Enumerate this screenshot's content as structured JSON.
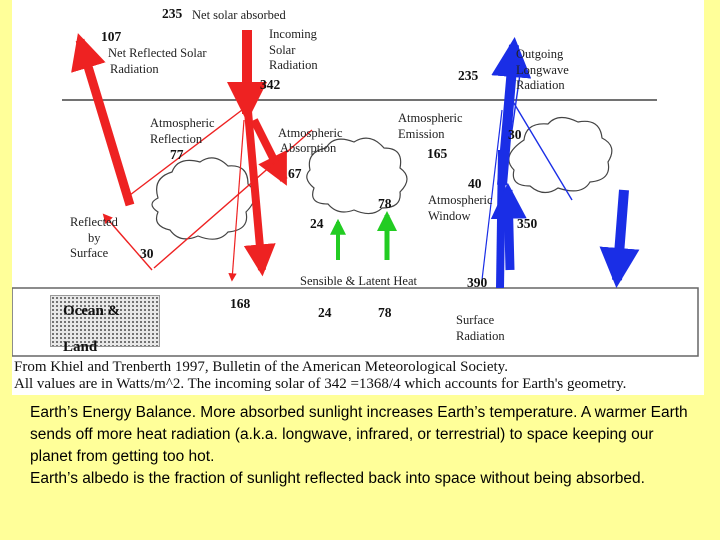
{
  "diagram": {
    "labels": {
      "net_solar_value": "235",
      "net_solar_text": "Net solar absorbed",
      "reflected_value": "107",
      "reflected_l1": "Net Reflected Solar",
      "reflected_l2": "Radiation",
      "incoming_l1": "Incoming",
      "incoming_l2": "Solar",
      "incoming_l3": "Radiation",
      "incoming_value": "342",
      "outgoing_value": "235",
      "outgoing_l1": "Outgoing",
      "outgoing_l2": "Longwave",
      "outgoing_l3": "Radiation",
      "atm_refl_l1": "Atmospheric",
      "atm_refl_l2": "Reflection",
      "atm_refl_value": "77",
      "atm_abs_l1": "Atmospheric",
      "atm_abs_l2": "Absorption",
      "atm_abs_value": "67",
      "atm_emis_l1": "Atmospheric",
      "atm_emis_l2": "Emission",
      "atm_emis_value": "165",
      "thirty_top": "30",
      "forty": "40",
      "window_l1": "Atmospheric",
      "window_l2": "Window",
      "seventy_eight_up": "78",
      "twenty_four_up": "24",
      "three_fifty": "350",
      "refl_surface_l1": "Reflected",
      "refl_surface_l2": "by",
      "refl_surface_l3": "Surface",
      "refl_surface_value": "30",
      "sensible_latent": "Sensible & Latent Heat",
      "three_ninety": "390",
      "absorbed_surface": "168",
      "twenty_four_low": "24",
      "seventy_eight_low": "78",
      "surface_rad_l1": "Surface",
      "surface_rad_l2": "Radiation",
      "ocean_l1": "Ocean &",
      "ocean_l2": "Land"
    },
    "source_line": "From Khiel and Trenberth 1997,  Bulletin of the American Meteorological Society.",
    "units_line": "All values are in Watts/m^2.  The incoming solar of 342 =1368/4 which accounts for Earth's geometry."
  },
  "caption": {
    "p1": "Earth’s Energy Balance.  More absorbed sunlight increases Earth’s temperature.  A warmer Earth sends off more heat radiation (a.k.a. longwave, infrared, or terrestrial) to space keeping our planet from getting too hot.",
    "p2": "Earth’s albedo is the fraction of sunlight reflected back into space without being absorbed."
  },
  "colors": {
    "background": "#ffff99",
    "solar": "#ee2222",
    "longwave": "#1a2ee6",
    "heat": "#22cc22"
  }
}
